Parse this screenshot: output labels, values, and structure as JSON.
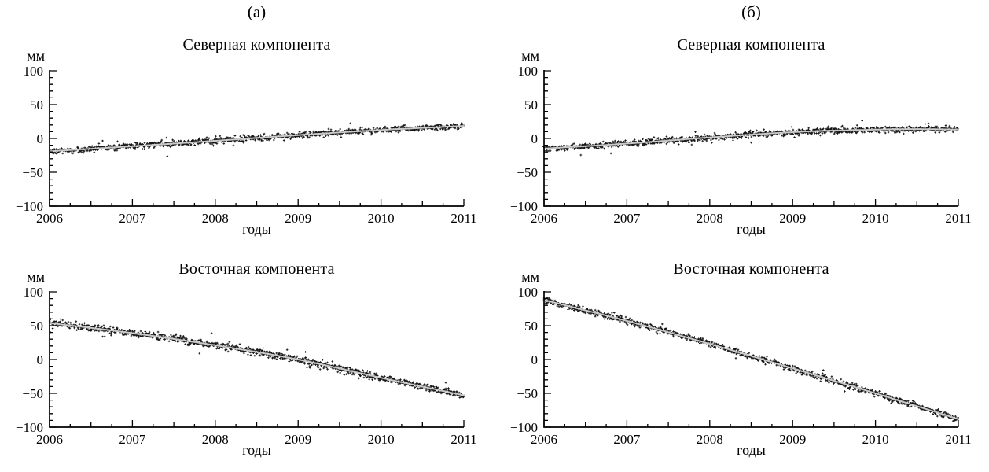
{
  "panels": [
    {
      "label": "(а)"
    },
    {
      "label": "(б)"
    }
  ],
  "chart_data": [
    {
      "type": "scatter",
      "panel": "(а)",
      "title": "Северная компонента",
      "ylabel": "мм",
      "xlabel": "годы",
      "xlim": [
        2006,
        2011
      ],
      "ylim": [
        -100,
        100
      ],
      "x_ticks": [
        [
          2006,
          "2006"
        ],
        [
          2007,
          "2007"
        ],
        [
          2008,
          "2008"
        ],
        [
          2009,
          "2009"
        ],
        [
          2010,
          "2010"
        ],
        [
          2011,
          "2011"
        ]
      ],
      "x_minor_step": 0.25,
      "y_ticks": [
        [
          100,
          "100"
        ],
        [
          50,
          "50"
        ],
        [
          0,
          "0"
        ],
        [
          -50,
          "−50"
        ],
        [
          -100,
          "−100"
        ]
      ],
      "y_minor_step": 10,
      "trend_keypoints": [
        [
          2006,
          -19
        ],
        [
          2007,
          -11.5
        ],
        [
          2008,
          -3.5
        ],
        [
          2009,
          5
        ],
        [
          2010,
          12.5
        ],
        [
          2011,
          18.5
        ]
      ],
      "noise_sd_mm": 2.2,
      "outlier_fraction": 0.03,
      "n_points": 1100,
      "grid": false,
      "legend": "none",
      "point_color": "#161616",
      "fit_color": "#c9c9c9",
      "axis_color": "#000000"
    },
    {
      "type": "scatter",
      "panel": "(б)",
      "title": "Северная компонента",
      "ylabel": "мм",
      "xlabel": "годы",
      "xlim": [
        2006,
        2011
      ],
      "ylim": [
        -100,
        100
      ],
      "x_ticks": [
        [
          2006,
          "2006"
        ],
        [
          2007,
          "2007"
        ],
        [
          2008,
          "2008"
        ],
        [
          2009,
          "2009"
        ],
        [
          2010,
          "2010"
        ],
        [
          2011,
          "2011"
        ]
      ],
      "x_minor_step": 0.25,
      "y_ticks": [
        [
          100,
          "100"
        ],
        [
          50,
          "50"
        ],
        [
          0,
          "0"
        ],
        [
          -50,
          "−50"
        ],
        [
          -100,
          "−100"
        ]
      ],
      "y_minor_step": 10,
      "trend_keypoints": [
        [
          2006,
          -15
        ],
        [
          2007,
          -7.5
        ],
        [
          2008,
          1.5
        ],
        [
          2008.6,
          6.5
        ],
        [
          2009.2,
          10.5
        ],
        [
          2009.8,
          12.5
        ],
        [
          2010.4,
          13.8
        ],
        [
          2011,
          13.2
        ]
      ],
      "noise_sd_mm": 2.2,
      "outlier_fraction": 0.03,
      "n_points": 1100,
      "grid": false,
      "legend": "none",
      "point_color": "#161616",
      "fit_color": "#c9c9c9",
      "axis_color": "#000000"
    },
    {
      "type": "scatter",
      "panel": "(а)",
      "title": "Восточная компонента",
      "ylabel": "мм",
      "xlabel": "годы",
      "xlim": [
        2006,
        2011
      ],
      "ylim": [
        -100,
        100
      ],
      "x_ticks": [
        [
          2006,
          "2006"
        ],
        [
          2007,
          "2007"
        ],
        [
          2008,
          "2008"
        ],
        [
          2009,
          "2009"
        ],
        [
          2010,
          "2010"
        ],
        [
          2011,
          "2011"
        ]
      ],
      "x_minor_step": 0.25,
      "y_ticks": [
        [
          100,
          "100"
        ],
        [
          50,
          "50"
        ],
        [
          0,
          "0"
        ],
        [
          -50,
          "−50"
        ],
        [
          -100,
          "−100"
        ]
      ],
      "y_minor_step": 10,
      "trend_keypoints": [
        [
          2006,
          54
        ],
        [
          2007,
          39
        ],
        [
          2008,
          21
        ],
        [
          2009,
          0
        ],
        [
          2010,
          -27
        ],
        [
          2011,
          -53
        ]
      ],
      "noise_sd_mm": 2.6,
      "outlier_fraction": 0.045,
      "n_points": 1100,
      "grid": false,
      "legend": "none",
      "point_color": "#161616",
      "fit_color": "#c9c9c9",
      "axis_color": "#000000"
    },
    {
      "type": "scatter",
      "panel": "(б)",
      "title": "Восточная компонента",
      "ylabel": "мм",
      "xlabel": "годы",
      "xlim": [
        2006,
        2011
      ],
      "ylim": [
        -100,
        100
      ],
      "x_ticks": [
        [
          2006,
          "2006"
        ],
        [
          2007,
          "2007"
        ],
        [
          2008,
          "2008"
        ],
        [
          2009,
          "2009"
        ],
        [
          2010,
          "2010"
        ],
        [
          2011,
          "2011"
        ]
      ],
      "x_minor_step": 0.25,
      "y_ticks": [
        [
          100,
          "100"
        ],
        [
          50,
          "50"
        ],
        [
          0,
          "0"
        ],
        [
          -50,
          "−50"
        ],
        [
          -100,
          "−100"
        ]
      ],
      "y_minor_step": 10,
      "trend_keypoints": [
        [
          2006,
          88
        ],
        [
          2007,
          57
        ],
        [
          2008,
          23
        ],
        [
          2009,
          -13
        ],
        [
          2010,
          -50
        ],
        [
          2011,
          -88
        ]
      ],
      "noise_sd_mm": 2.2,
      "outlier_fraction": 0.03,
      "n_points": 1100,
      "grid": false,
      "legend": "none",
      "point_color": "#161616",
      "fit_color": "#c9c9c9",
      "axis_color": "#000000"
    }
  ]
}
